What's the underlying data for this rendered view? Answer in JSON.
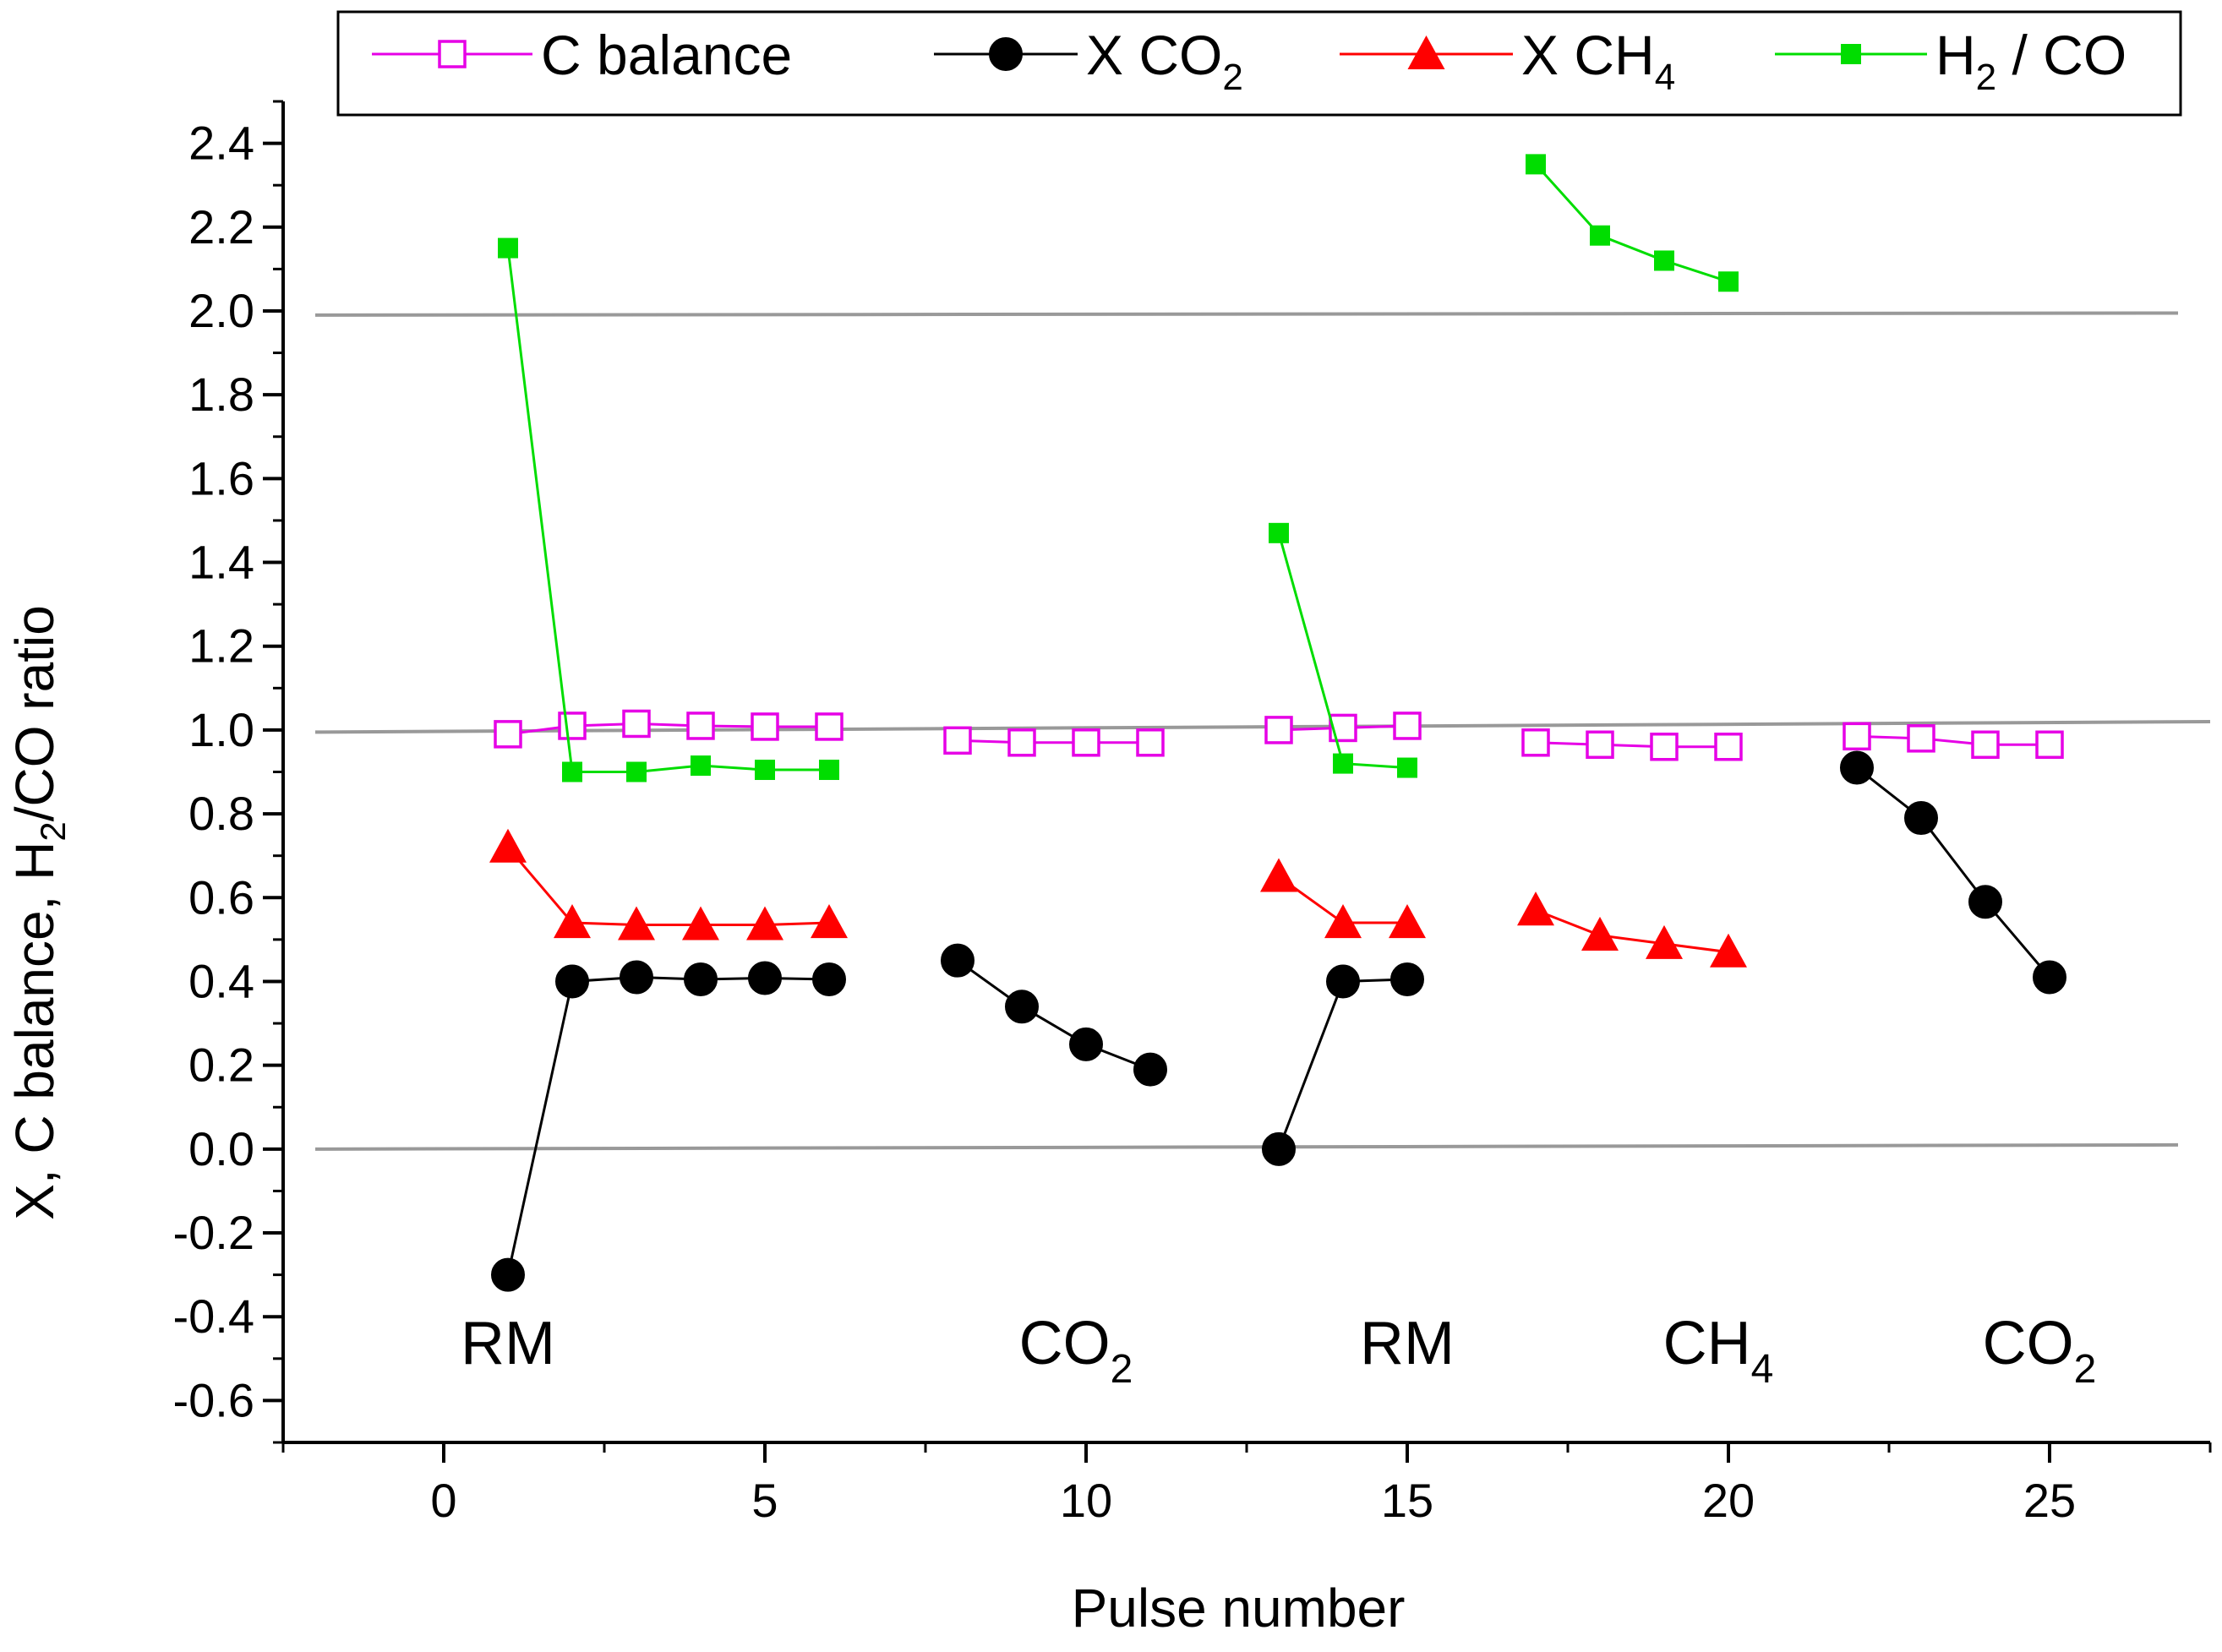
{
  "chart_data": {
    "type": "line",
    "title": "",
    "xlabel": "Pulse number",
    "ylabel": "X,  C balance, H2/CO ratio",
    "xlim": [
      -2.5,
      27.5
    ],
    "ylim": [
      -0.7,
      2.5
    ],
    "xticks": [
      0,
      5,
      10,
      15,
      20,
      25
    ],
    "xtick_labels": [
      "0",
      "5",
      "10",
      "15",
      "20",
      "25"
    ],
    "yticks": [
      -0.6,
      -0.4,
      -0.2,
      0.0,
      0.2,
      0.4,
      0.6,
      0.8,
      1.0,
      1.2,
      1.4,
      1.6,
      1.8,
      2.0,
      2.2,
      2.4
    ],
    "ytick_labels": [
      "-0.6",
      "-0.4",
      "-0.2",
      "0.0",
      "0.2",
      "0.4",
      "0.6",
      "0.8",
      "1.0",
      "1.2",
      "1.4",
      "1.6",
      "1.8",
      "2.0",
      "2.2",
      "2.4"
    ],
    "legend_position": "top",
    "reference_lines": [
      {
        "name": "ref-line-2",
        "x": [
          -2,
          27
        ],
        "y": [
          1.99,
          1.995
        ]
      },
      {
        "name": "ref-line-1",
        "x": [
          -2,
          27.5
        ],
        "y": [
          0.995,
          1.02
        ]
      },
      {
        "name": "ref-line-0",
        "x": [
          -2,
          27
        ],
        "y": [
          0.0,
          0.01
        ]
      }
    ],
    "series": [
      {
        "name": "C balance",
        "label": "C balance",
        "color": "#e600e6",
        "marker": "open-square",
        "segments": [
          {
            "x": [
              1,
              2,
              3,
              4,
              5,
              6
            ],
            "y": [
              0.99,
              1.01,
              1.015,
              1.01,
              1.008,
              1.008
            ]
          },
          {
            "x": [
              8,
              9,
              10,
              11
            ],
            "y": [
              0.975,
              0.97,
              0.97,
              0.97
            ]
          },
          {
            "x": [
              13,
              14,
              15
            ],
            "y": [
              1.0,
              1.005,
              1.01
            ]
          },
          {
            "x": [
              17,
              18,
              19,
              20
            ],
            "y": [
              0.97,
              0.965,
              0.96,
              0.96
            ]
          },
          {
            "x": [
              22,
              23,
              24,
              25
            ],
            "y": [
              0.985,
              0.98,
              0.965,
              0.965
            ]
          }
        ]
      },
      {
        "name": "X CO2",
        "label": "X CO",
        "label_sub": "2",
        "color": "#000000",
        "marker": "filled-circle",
        "segments": [
          {
            "x": [
              1,
              2,
              3,
              4,
              5,
              6
            ],
            "y": [
              -0.3,
              0.4,
              0.41,
              0.405,
              0.408,
              0.405
            ]
          },
          {
            "x": [
              8,
              9,
              10,
              11
            ],
            "y": [
              0.45,
              0.34,
              0.25,
              0.19
            ]
          },
          {
            "x": [
              13,
              14,
              15
            ],
            "y": [
              0.0,
              0.4,
              0.405
            ]
          },
          {
            "x": [
              22,
              23,
              24,
              25
            ],
            "y": [
              0.91,
              0.79,
              0.59,
              0.41
            ]
          }
        ]
      },
      {
        "name": "X CH4",
        "label": "X CH",
        "label_sub": "4",
        "color": "#ff0000",
        "marker": "filled-triangle",
        "segments": [
          {
            "x": [
              1,
              2,
              3,
              4,
              5,
              6
            ],
            "y": [
              0.72,
              0.54,
              0.535,
              0.535,
              0.535,
              0.54
            ]
          },
          {
            "x": [
              13,
              14,
              15
            ],
            "y": [
              0.65,
              0.54,
              0.54
            ]
          },
          {
            "x": [
              17,
              18,
              19,
              20
            ],
            "y": [
              0.57,
              0.51,
              0.49,
              0.47
            ]
          }
        ]
      },
      {
        "name": "H2 / CO",
        "label_pre": "H",
        "label_sub": "2",
        "label_post": " / CO",
        "color": "#00dd00",
        "marker": "filled-square",
        "segments": [
          {
            "x": [
              1,
              2,
              3,
              4,
              5,
              6
            ],
            "y": [
              2.15,
              0.9,
              0.9,
              0.915,
              0.905,
              0.905
            ]
          },
          {
            "x": [
              13,
              14,
              15
            ],
            "y": [
              1.47,
              0.92,
              0.91
            ]
          },
          {
            "x": [
              17,
              18,
              19,
              20
            ],
            "y": [
              2.35,
              2.18,
              2.12,
              2.07
            ]
          }
        ]
      }
    ],
    "annotations": [
      {
        "name": "region-label-rm-1",
        "text": "RM",
        "x": 1.0,
        "y": -0.5
      },
      {
        "name": "region-label-co2-1",
        "text": "CO",
        "sub": "2",
        "x": 10.0,
        "y": -0.5
      },
      {
        "name": "region-label-rm-2",
        "text": "RM",
        "x": 15.0,
        "y": -0.5
      },
      {
        "name": "region-label-ch4",
        "text": "CH",
        "sub": "4",
        "x": 20.0,
        "y": -0.5
      },
      {
        "name": "region-label-co2-2",
        "text": "CO",
        "sub": "2",
        "x": 25.0,
        "y": -0.5
      }
    ]
  }
}
